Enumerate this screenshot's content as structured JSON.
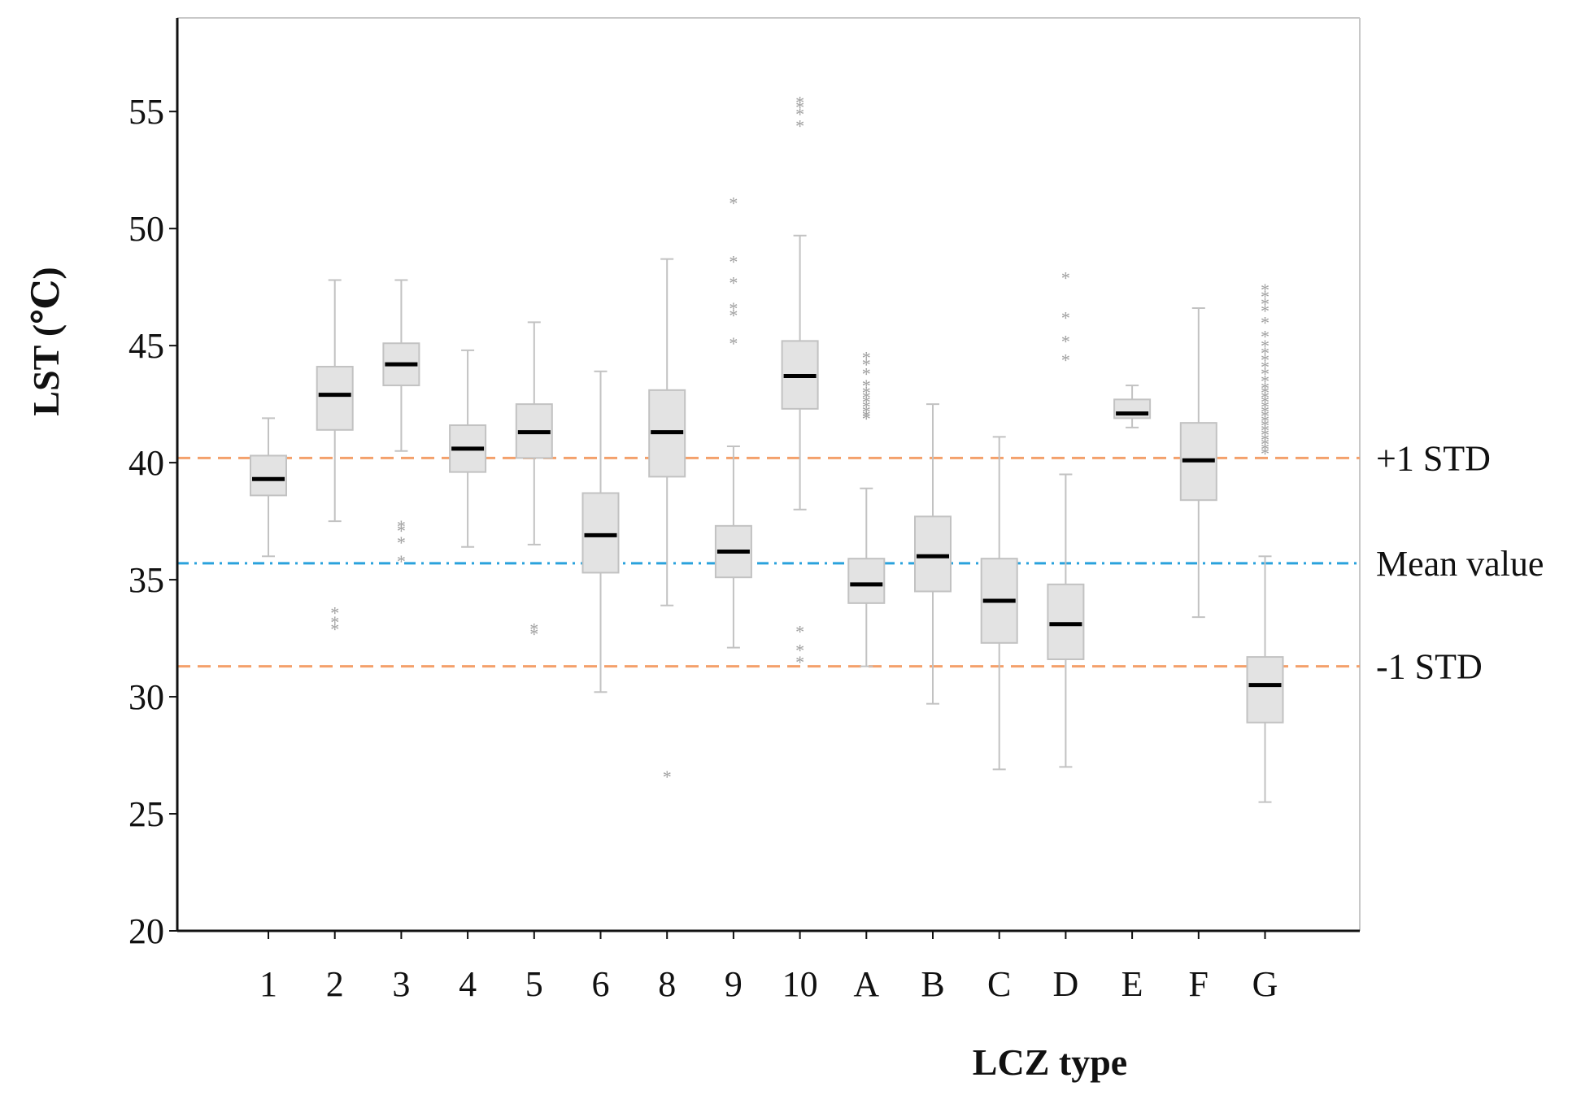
{
  "chart_data": {
    "type": "box",
    "xlabel": "LCZ type",
    "ylabel": "LST (℃)",
    "ylim": [
      20,
      59
    ],
    "yticks": [
      20,
      25,
      30,
      35,
      40,
      45,
      50,
      55
    ],
    "categories": [
      "1",
      "2",
      "3",
      "4",
      "5",
      "6",
      "8",
      "9",
      "10",
      "A",
      "B",
      "C",
      "D",
      "E",
      "F",
      "G"
    ],
    "boxes": [
      {
        "category": "1",
        "whisker_low": 36.0,
        "q1": 38.6,
        "median": 39.3,
        "q3": 40.3,
        "whisker_high": 41.9,
        "outliers": []
      },
      {
        "category": "2",
        "whisker_low": 37.5,
        "q1": 41.4,
        "median": 42.9,
        "q3": 44.1,
        "whisker_high": 47.8,
        "outliers": [
          32.9,
          33.2,
          33.6
        ]
      },
      {
        "category": "3",
        "whisker_low": 40.5,
        "q1": 43.3,
        "median": 44.2,
        "q3": 45.1,
        "whisker_high": 47.8,
        "outliers": [
          37.3,
          37.1,
          36.6,
          35.8
        ]
      },
      {
        "category": "4",
        "whisker_low": 36.4,
        "q1": 39.6,
        "median": 40.6,
        "q3": 41.6,
        "whisker_high": 44.8,
        "outliers": []
      },
      {
        "category": "5",
        "whisker_low": 36.5,
        "q1": 40.2,
        "median": 41.3,
        "q3": 42.5,
        "whisker_high": 46.0,
        "outliers": [
          32.7,
          32.9
        ]
      },
      {
        "category": "6",
        "whisker_low": 30.2,
        "q1": 35.3,
        "median": 36.9,
        "q3": 38.7,
        "whisker_high": 43.9,
        "outliers": []
      },
      {
        "category": "8",
        "whisker_low": 33.9,
        "q1": 39.4,
        "median": 41.3,
        "q3": 43.1,
        "whisker_high": 48.7,
        "outliers": [
          26.6
        ]
      },
      {
        "category": "9",
        "whisker_low": 32.1,
        "q1": 35.1,
        "median": 36.2,
        "q3": 37.3,
        "whisker_high": 40.7,
        "outliers": [
          45.1,
          46.3,
          46.6,
          47.7,
          48.6,
          51.1
        ]
      },
      {
        "category": "10",
        "whisker_low": 38.0,
        "q1": 42.3,
        "median": 43.7,
        "q3": 45.2,
        "whisker_high": 49.7,
        "outliers": [
          31.5,
          32.0,
          32.8,
          54.4,
          54.9,
          55.2,
          55.4
        ]
      },
      {
        "category": "A",
        "whisker_low": 31.3,
        "q1": 34.0,
        "median": 34.8,
        "q3": 35.9,
        "whisker_high": 38.9,
        "outliers": [
          41.9,
          42.0,
          42.2,
          42.4,
          42.6,
          42.8,
          43.0,
          43.3,
          43.8,
          44.2,
          44.5
        ]
      },
      {
        "category": "B",
        "whisker_low": 29.7,
        "q1": 34.5,
        "median": 36.0,
        "q3": 37.7,
        "whisker_high": 42.5,
        "outliers": []
      },
      {
        "category": "C",
        "whisker_low": 26.9,
        "q1": 32.3,
        "median": 34.1,
        "q3": 35.9,
        "whisker_high": 41.1,
        "outliers": []
      },
      {
        "category": "D",
        "whisker_low": 27.0,
        "q1": 31.6,
        "median": 33.1,
        "q3": 34.8,
        "whisker_high": 39.5,
        "outliers": [
          44.4,
          45.2,
          46.2,
          47.9
        ]
      },
      {
        "category": "E",
        "whisker_low": 41.5,
        "q1": 41.9,
        "median": 42.1,
        "q3": 42.7,
        "whisker_high": 43.3,
        "outliers": []
      },
      {
        "category": "F",
        "whisker_low": 33.4,
        "q1": 38.4,
        "median": 40.1,
        "q3": 41.7,
        "whisker_high": 46.6,
        "outliers": []
      },
      {
        "category": "G",
        "whisker_low": 25.5,
        "q1": 28.9,
        "median": 30.5,
        "q3": 31.7,
        "whisker_high": 36.0,
        "outliers": [
          40.4,
          40.6,
          40.8,
          41.0,
          41.2,
          41.4,
          41.6,
          41.8,
          42.0,
          42.2,
          42.4,
          42.6,
          42.8,
          43.0,
          43.2,
          43.5,
          43.8,
          44.1,
          44.4,
          44.7,
          45.0,
          45.4,
          46.0,
          46.5,
          46.8,
          47.1,
          47.4
        ]
      }
    ],
    "reference_lines": [
      {
        "label": "+1 STD",
        "value": 40.2,
        "color": "#f4a06b",
        "style": "dashed"
      },
      {
        "label": "Mean value",
        "value": 35.7,
        "color": "#2aa2dc",
        "style": "dash-dot"
      },
      {
        "label": "-1 STD",
        "value": 31.3,
        "color": "#f4a06b",
        "style": "dashed"
      }
    ],
    "colors": {
      "box_fill": "#e3e3e3",
      "box_stroke": "#c2c2c2",
      "median": "#000000",
      "outlier": "#a0a0a0",
      "axis": "#111111",
      "frame": "#c8c8c8"
    }
  }
}
